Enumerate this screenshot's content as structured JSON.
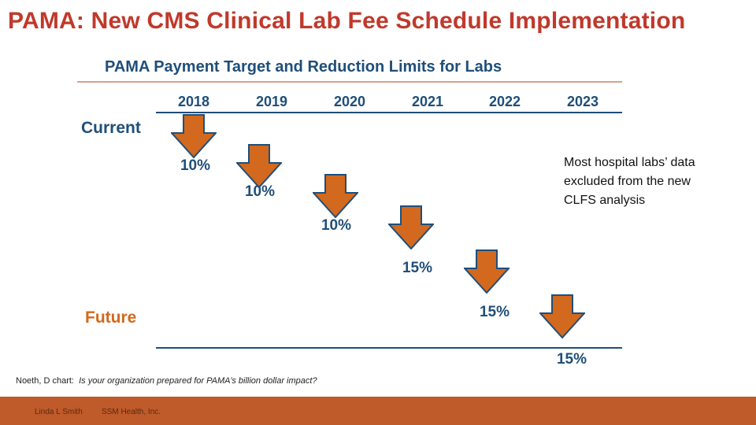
{
  "slide": {
    "title": "PAMA: New CMS Clinical Lab Fee Schedule Implementation"
  },
  "diagram": {
    "title": "PAMA Payment Target and Reduction Limits for Labs",
    "years": [
      "2018",
      "2019",
      "2020",
      "2021",
      "2022",
      "2023"
    ],
    "current_label": "Current",
    "future_label": "Future",
    "reductions": [
      "10%",
      "10%",
      "10%",
      "15%",
      "15%",
      "15%"
    ],
    "note": "Most hospital labs’ data excluded from the new CLFS analysis",
    "colors": {
      "title": "#c0392b",
      "navy": "#1f4e79",
      "arrow": "#d2691e",
      "future": "#d2691e",
      "footer": "#bf5a2a"
    }
  },
  "source": {
    "prefix": "Noeth, D chart:",
    "text": "Is your organization prepared for PAMA’s billion dollar impact?"
  },
  "footer": {
    "author": "Linda L Smith",
    "org": "SSM Health, Inc."
  }
}
